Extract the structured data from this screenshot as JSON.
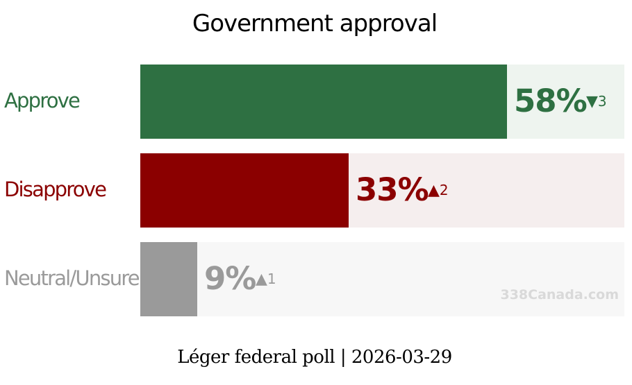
{
  "chart_data": {
    "type": "bar",
    "orientation": "horizontal",
    "title": "Government approval",
    "categories": [
      "Approve",
      "Disapprove",
      "Neutral/Unsure"
    ],
    "values": [
      58,
      33,
      9
    ],
    "value_labels": [
      "58%",
      "33%",
      "9%"
    ],
    "changes": [
      {
        "direction": "down",
        "arrow": "▼",
        "value": "3"
      },
      {
        "direction": "up",
        "arrow": "▲",
        "value": "2"
      },
      {
        "direction": "up",
        "arrow": "▲",
        "value": "1"
      }
    ],
    "colors": [
      "#2e7042",
      "#8b0000",
      "#9a9a9a"
    ],
    "track_colors": [
      "#eef4ef",
      "#f5eeee",
      "#f7f7f7"
    ],
    "xlim": [
      0,
      100
    ],
    "grid": false,
    "legend": "none"
  },
  "watermark": "338Canada.com",
  "footer": "Léger federal poll | 2026-03-29"
}
